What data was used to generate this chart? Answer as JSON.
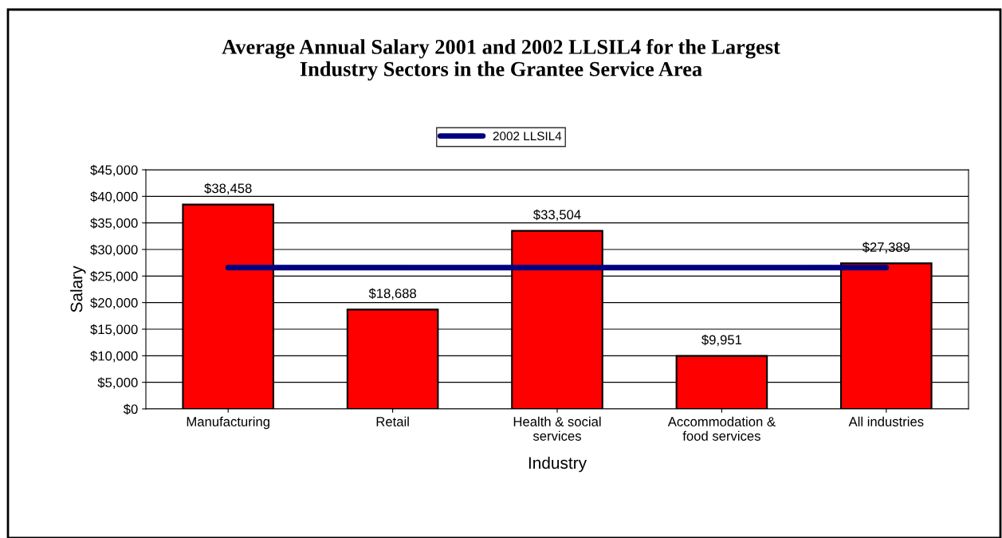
{
  "chart_data": {
    "type": "bar",
    "title": "Average Annual Salary 2001 and 2002 LLSIL4 for the Largest\nIndustry Sectors in the Grantee Service Area",
    "xlabel": "Industry",
    "ylabel": "Salary",
    "categories": [
      "Manufacturing",
      "Retail",
      "Health & social\nservices",
      "Accommodation &\nfood services",
      "All industries"
    ],
    "series": [
      {
        "color": "#ff0000",
        "values": [
          38458,
          18688,
          33504,
          9951,
          27389
        ],
        "value_labels": [
          "$38,458",
          "$18,688",
          "$33,504",
          "$9,951",
          "$27,389"
        ]
      },
      {
        "name": "2002 LLSIL4",
        "type": "line",
        "color": "#000080",
        "values": [
          26600,
          26600,
          26600,
          26600,
          26600
        ]
      }
    ],
    "ylim": [
      0,
      45000
    ],
    "yticks": [
      {
        "value": 0,
        "label": "$0"
      },
      {
        "value": 5000,
        "label": "$5,000"
      },
      {
        "value": 10000,
        "label": "$10,000"
      },
      {
        "value": 15000,
        "label": "$15,000"
      },
      {
        "value": 20000,
        "label": "$20,000"
      },
      {
        "value": 25000,
        "label": "$25,000"
      },
      {
        "value": 30000,
        "label": "$30,000"
      },
      {
        "value": 35000,
        "label": "$35,000"
      },
      {
        "value": 40000,
        "label": "$40,000"
      },
      {
        "value": 45000,
        "label": "$45,000"
      }
    ],
    "grid": "y",
    "legend": "top",
    "marker": "none",
    "line_style": "solid"
  }
}
